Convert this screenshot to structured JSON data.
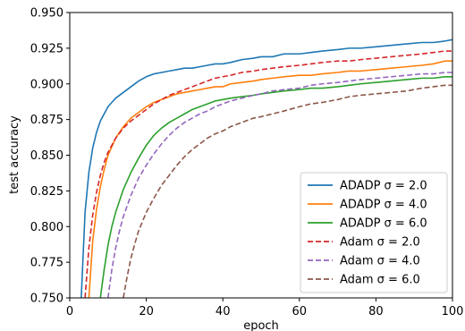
{
  "chart_data": {
    "type": "line",
    "title": "",
    "xlabel": "epoch",
    "ylabel": "test accuracy",
    "xlim": [
      0,
      100
    ],
    "ylim": [
      0.75,
      0.95
    ],
    "xticks": [
      "0",
      "20",
      "40",
      "60",
      "80",
      "100"
    ],
    "yticks": [
      "0.750",
      "0.775",
      "0.800",
      "0.825",
      "0.850",
      "0.875",
      "0.900",
      "0.925",
      "0.950"
    ],
    "grid": false,
    "legend_position": "lower-right",
    "series": [
      {
        "name": "ADADP σ = 2.0",
        "color": "#1f77b4",
        "style": "solid",
        "x": [
          3,
          4,
          5,
          6,
          7,
          8,
          9,
          10,
          12,
          14,
          16,
          18,
          20,
          22,
          24,
          26,
          28,
          30,
          32,
          34,
          36,
          38,
          40,
          42,
          45,
          48,
          50,
          53,
          56,
          60,
          63,
          66,
          70,
          73,
          76,
          80,
          84,
          88,
          92,
          95,
          98,
          100
        ],
        "y": [
          0.75,
          0.81,
          0.838,
          0.855,
          0.866,
          0.874,
          0.879,
          0.884,
          0.89,
          0.894,
          0.898,
          0.902,
          0.905,
          0.907,
          0.908,
          0.909,
          0.91,
          0.911,
          0.911,
          0.912,
          0.913,
          0.914,
          0.914,
          0.915,
          0.917,
          0.918,
          0.919,
          0.919,
          0.921,
          0.921,
          0.922,
          0.923,
          0.924,
          0.925,
          0.925,
          0.926,
          0.927,
          0.928,
          0.929,
          0.929,
          0.93,
          0.931
        ]
      },
      {
        "name": "ADADP σ = 4.0",
        "color": "#ff7f0e",
        "style": "solid",
        "x": [
          5,
          6,
          7,
          8,
          9,
          10,
          12,
          14,
          16,
          18,
          20,
          22,
          24,
          26,
          28,
          30,
          32,
          34,
          36,
          38,
          40,
          42,
          45,
          48,
          50,
          53,
          56,
          60,
          63,
          66,
          70,
          73,
          76,
          80,
          84,
          88,
          92,
          95,
          98,
          100
        ],
        "y": [
          0.75,
          0.79,
          0.812,
          0.828,
          0.84,
          0.85,
          0.862,
          0.87,
          0.876,
          0.88,
          0.884,
          0.887,
          0.889,
          0.891,
          0.893,
          0.894,
          0.895,
          0.896,
          0.897,
          0.898,
          0.898,
          0.9,
          0.901,
          0.902,
          0.903,
          0.904,
          0.905,
          0.906,
          0.906,
          0.907,
          0.908,
          0.909,
          0.909,
          0.91,
          0.911,
          0.912,
          0.913,
          0.914,
          0.916,
          0.916
        ]
      },
      {
        "name": "ADADP σ = 6.0",
        "color": "#2ca02c",
        "style": "solid",
        "x": [
          8,
          9,
          10,
          11,
          12,
          14,
          16,
          18,
          20,
          22,
          24,
          26,
          28,
          30,
          32,
          34,
          36,
          38,
          40,
          42,
          45,
          48,
          50,
          53,
          56,
          60,
          63,
          66,
          70,
          73,
          76,
          80,
          84,
          88,
          92,
          95,
          98,
          100
        ],
        "y": [
          0.75,
          0.77,
          0.787,
          0.8,
          0.81,
          0.826,
          0.838,
          0.848,
          0.857,
          0.864,
          0.869,
          0.873,
          0.876,
          0.879,
          0.882,
          0.884,
          0.886,
          0.888,
          0.889,
          0.89,
          0.891,
          0.892,
          0.893,
          0.894,
          0.895,
          0.896,
          0.897,
          0.897,
          0.898,
          0.899,
          0.9,
          0.901,
          0.902,
          0.903,
          0.904,
          0.904,
          0.905,
          0.905
        ]
      },
      {
        "name": "Adam σ = 2.0",
        "color": "#d62728",
        "style": "dashed",
        "x": [
          4,
          5,
          6,
          7,
          8,
          9,
          10,
          12,
          14,
          16,
          18,
          20,
          22,
          24,
          26,
          28,
          30,
          32,
          34,
          36,
          38,
          40,
          42,
          45,
          48,
          50,
          53,
          56,
          60,
          63,
          66,
          70,
          73,
          76,
          80,
          84,
          88,
          92,
          95,
          98,
          100
        ],
        "y": [
          0.75,
          0.785,
          0.808,
          0.824,
          0.836,
          0.845,
          0.852,
          0.862,
          0.869,
          0.874,
          0.878,
          0.882,
          0.886,
          0.889,
          0.892,
          0.894,
          0.896,
          0.898,
          0.9,
          0.902,
          0.904,
          0.905,
          0.906,
          0.908,
          0.909,
          0.91,
          0.911,
          0.912,
          0.913,
          0.914,
          0.915,
          0.916,
          0.916,
          0.917,
          0.918,
          0.919,
          0.92,
          0.921,
          0.922,
          0.923,
          0.923
        ]
      },
      {
        "name": "Adam σ = 4.0",
        "color": "#9467bd",
        "style": "dashed",
        "x": [
          10,
          11,
          12,
          13,
          14,
          16,
          18,
          20,
          22,
          24,
          26,
          28,
          30,
          32,
          34,
          36,
          38,
          40,
          42,
          45,
          48,
          50,
          53,
          56,
          60,
          63,
          66,
          70,
          73,
          76,
          80,
          84,
          88,
          92,
          95,
          98,
          100
        ],
        "y": [
          0.75,
          0.77,
          0.785,
          0.797,
          0.807,
          0.822,
          0.834,
          0.843,
          0.851,
          0.858,
          0.864,
          0.869,
          0.873,
          0.876,
          0.879,
          0.881,
          0.884,
          0.886,
          0.888,
          0.89,
          0.892,
          0.893,
          0.895,
          0.896,
          0.897,
          0.899,
          0.9,
          0.901,
          0.902,
          0.903,
          0.904,
          0.905,
          0.906,
          0.907,
          0.907,
          0.908,
          0.908
        ]
      },
      {
        "name": "Adam σ = 6.0",
        "color": "#8c564b",
        "style": "dashed",
        "x": [
          14,
          15,
          16,
          17,
          18,
          20,
          22,
          24,
          26,
          28,
          30,
          32,
          34,
          36,
          38,
          40,
          42,
          45,
          48,
          50,
          53,
          56,
          60,
          63,
          66,
          70,
          73,
          76,
          80,
          84,
          88,
          92,
          95,
          98,
          100
        ],
        "y": [
          0.75,
          0.765,
          0.778,
          0.788,
          0.797,
          0.81,
          0.82,
          0.829,
          0.836,
          0.843,
          0.849,
          0.854,
          0.858,
          0.862,
          0.865,
          0.867,
          0.87,
          0.873,
          0.876,
          0.877,
          0.879,
          0.881,
          0.884,
          0.886,
          0.887,
          0.889,
          0.891,
          0.892,
          0.893,
          0.894,
          0.895,
          0.897,
          0.898,
          0.899,
          0.899
        ]
      }
    ]
  }
}
